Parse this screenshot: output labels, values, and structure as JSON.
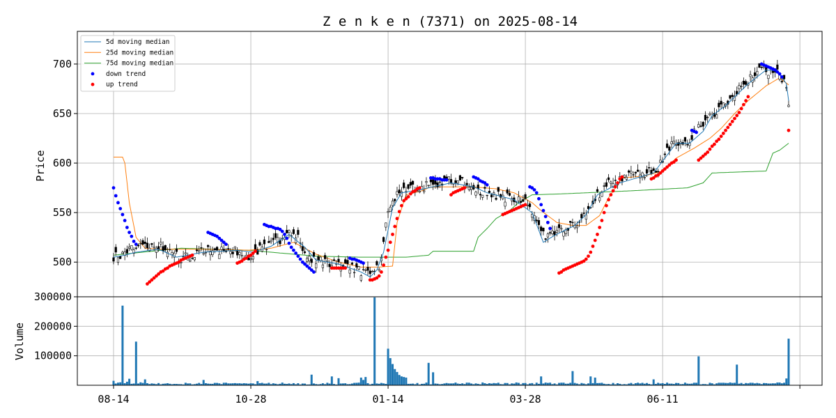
{
  "chart_data": {
    "type": "candlestick",
    "title": "Z e n k e n  (7371) on 2025-08-14",
    "price_panel": {
      "ylabel": "Price",
      "ylim": [
        465,
        733
      ],
      "yticks": [
        500,
        550,
        600,
        650,
        700
      ],
      "legend_position": "upper-left",
      "legend": [
        {
          "label": "5d moving median",
          "kind": "line",
          "color": "#1f77b4"
        },
        {
          "label": "25d moving median",
          "kind": "line",
          "color": "#ff7f0e"
        },
        {
          "label": "75d moving median",
          "kind": "line",
          "color": "#2ca02c"
        },
        {
          "label": "down trend",
          "kind": "dot",
          "color": "#0000ff"
        },
        {
          "label": "up trend",
          "kind": "dot",
          "color": "#ff0000"
        }
      ],
      "close_anchors": [
        [
          0,
          505
        ],
        [
          5,
          510
        ],
        [
          10,
          514
        ],
        [
          16,
          518
        ],
        [
          22,
          515
        ],
        [
          30,
          503
        ],
        [
          40,
          512
        ],
        [
          50,
          512
        ],
        [
          55,
          512
        ],
        [
          60,
          507
        ],
        [
          67,
          515
        ],
        [
          72,
          520
        ],
        [
          78,
          528
        ],
        [
          82,
          528
        ],
        [
          85,
          510
        ],
        [
          88,
          502
        ],
        [
          95,
          500
        ],
        [
          100,
          498
        ],
        [
          105,
          495
        ],
        [
          110,
          490
        ],
        [
          114,
          488
        ],
        [
          117,
          497
        ],
        [
          118,
          496
        ],
        [
          122,
          548
        ],
        [
          126,
          572
        ],
        [
          130,
          575
        ],
        [
          136,
          576
        ],
        [
          144,
          580
        ],
        [
          152,
          583
        ],
        [
          160,
          577
        ],
        [
          166,
          568
        ],
        [
          172,
          566
        ],
        [
          178,
          564
        ],
        [
          184,
          560
        ],
        [
          188,
          540
        ],
        [
          192,
          525
        ],
        [
          196,
          532
        ],
        [
          200,
          535
        ],
        [
          205,
          538
        ],
        [
          210,
          550
        ],
        [
          214,
          565
        ],
        [
          220,
          580
        ],
        [
          228,
          588
        ],
        [
          236,
          588
        ],
        [
          242,
          595
        ],
        [
          246,
          615
        ],
        [
          250,
          620
        ],
        [
          254,
          618
        ],
        [
          258,
          632
        ],
        [
          262,
          638
        ],
        [
          266,
          650
        ],
        [
          272,
          660
        ],
        [
          280,
          680
        ],
        [
          288,
          695
        ],
        [
          294,
          692
        ],
        [
          296,
          688
        ],
        [
          299,
          680
        ],
        [
          300,
          663
        ]
      ],
      "ma5_anchors": [
        [
          0,
          505
        ],
        [
          5,
          507
        ],
        [
          10,
          510
        ],
        [
          20,
          513
        ],
        [
          28,
          505
        ],
        [
          40,
          510
        ],
        [
          55,
          512
        ],
        [
          62,
          510
        ],
        [
          70,
          516
        ],
        [
          78,
          528
        ],
        [
          85,
          515
        ],
        [
          90,
          502
        ],
        [
          100,
          498
        ],
        [
          110,
          490
        ],
        [
          114,
          485
        ],
        [
          117,
          492
        ],
        [
          120,
          510
        ],
        [
          124,
          555
        ],
        [
          128,
          570
        ],
        [
          136,
          573
        ],
        [
          150,
          580
        ],
        [
          160,
          576
        ],
        [
          166,
          570
        ],
        [
          178,
          563
        ],
        [
          186,
          550
        ],
        [
          191,
          520
        ],
        [
          196,
          527
        ],
        [
          205,
          537
        ],
        [
          210,
          548
        ],
        [
          215,
          568
        ],
        [
          225,
          580
        ],
        [
          240,
          590
        ],
        [
          246,
          608
        ],
        [
          250,
          620
        ],
        [
          256,
          620
        ],
        [
          262,
          632
        ],
        [
          266,
          648
        ],
        [
          272,
          658
        ],
        [
          282,
          680
        ],
        [
          290,
          694
        ],
        [
          295,
          693
        ],
        [
          299,
          680
        ],
        [
          300,
          663
        ]
      ],
      "ma25_anchors": [
        [
          0,
          606
        ],
        [
          4,
          606
        ],
        [
          5,
          600
        ],
        [
          7,
          560
        ],
        [
          10,
          525
        ],
        [
          14,
          514
        ],
        [
          22,
          513
        ],
        [
          40,
          513
        ],
        [
          60,
          512
        ],
        [
          70,
          514
        ],
        [
          80,
          520
        ],
        [
          90,
          508
        ],
        [
          100,
          500
        ],
        [
          110,
          495
        ],
        [
          118,
          495
        ],
        [
          124,
          496
        ],
        [
          126,
          540
        ],
        [
          130,
          568
        ],
        [
          137,
          572
        ],
        [
          140,
          575
        ],
        [
          143,
          576
        ],
        [
          160,
          576
        ],
        [
          170,
          574
        ],
        [
          178,
          570
        ],
        [
          186,
          560
        ],
        [
          190,
          552
        ],
        [
          197,
          540
        ],
        [
          204,
          537
        ],
        [
          210,
          537
        ],
        [
          216,
          547
        ],
        [
          220,
          565
        ],
        [
          226,
          585
        ],
        [
          236,
          587
        ],
        [
          244,
          592
        ],
        [
          250,
          605
        ],
        [
          258,
          615
        ],
        [
          265,
          625
        ],
        [
          270,
          635
        ],
        [
          276,
          650
        ],
        [
          282,
          663
        ],
        [
          290,
          678
        ],
        [
          296,
          686
        ],
        [
          300,
          679
        ]
      ],
      "ma75_anchors": [
        [
          0,
          507
        ],
        [
          30,
          514
        ],
        [
          60,
          512
        ],
        [
          90,
          506
        ],
        [
          110,
          505
        ],
        [
          130,
          505
        ],
        [
          140,
          507
        ],
        [
          142,
          511
        ],
        [
          160,
          511
        ],
        [
          162,
          525
        ],
        [
          166,
          534
        ],
        [
          170,
          544
        ],
        [
          176,
          552
        ],
        [
          180,
          560
        ],
        [
          186,
          568
        ],
        [
          200,
          569
        ],
        [
          230,
          572
        ],
        [
          255,
          575
        ],
        [
          262,
          580
        ],
        [
          266,
          590
        ],
        [
          290,
          592
        ],
        [
          293,
          610
        ],
        [
          296,
          613
        ],
        [
          300,
          620
        ]
      ],
      "down_trend_segments": [
        {
          "start": 0,
          "values": [
            575,
            567,
            560,
            554,
            548,
            542,
            535,
            530,
            526,
            521,
            518
          ]
        },
        {
          "start": 42,
          "values": [
            530,
            529,
            528,
            527,
            526,
            524,
            522,
            520,
            518
          ]
        },
        {
          "start": 67,
          "values": [
            538,
            537,
            536,
            536,
            535,
            534,
            534,
            533,
            531,
            528,
            524,
            519,
            515,
            512,
            509,
            506,
            503,
            500,
            498,
            496,
            494,
            492,
            490
          ]
        },
        {
          "start": 105,
          "values": [
            504,
            503,
            503,
            502,
            501,
            500,
            499
          ]
        },
        {
          "start": 141,
          "values": [
            585,
            585,
            584,
            584,
            584,
            583,
            583,
            583
          ]
        },
        {
          "start": 160,
          "values": [
            586,
            585,
            584,
            582,
            581,
            580,
            578
          ]
        },
        {
          "start": 185,
          "values": [
            576,
            575,
            573,
            570,
            564,
            558,
            552,
            546,
            540,
            534
          ]
        },
        {
          "start": 257,
          "values": [
            633,
            632,
            631
          ]
        },
        {
          "start": 288,
          "values": [
            700,
            699,
            698,
            697,
            696,
            695,
            694,
            692,
            690,
            687
          ]
        }
      ],
      "up_trend_segments": [
        {
          "start": 15,
          "values": [
            478,
            480,
            482,
            484,
            486,
            488,
            490,
            491,
            493,
            494,
            496,
            497,
            498,
            499,
            500,
            502,
            503,
            504,
            505,
            506,
            507
          ]
        },
        {
          "start": 55,
          "values": [
            499,
            500,
            501,
            503,
            504,
            506,
            507,
            509,
            511
          ]
        },
        {
          "start": 97,
          "values": [
            494,
            494,
            494,
            494,
            494,
            494,
            494
          ]
        },
        {
          "start": 114,
          "values": [
            482,
            482,
            483,
            484,
            486,
            490,
            497,
            505,
            512,
            520,
            528,
            536,
            544,
            551,
            557,
            562,
            564,
            566,
            569,
            571,
            572,
            574,
            575
          ]
        },
        {
          "start": 150,
          "values": [
            568,
            570,
            571,
            572,
            573,
            574,
            575
          ]
        },
        {
          "start": 173,
          "values": [
            548,
            549,
            550,
            551,
            552,
            553,
            554,
            555,
            556,
            557,
            558
          ]
        },
        {
          "start": 198,
          "values": [
            489,
            490,
            492,
            493,
            494,
            495,
            496,
            497,
            498,
            499,
            500,
            501,
            503,
            506,
            510,
            516,
            522,
            528,
            535,
            542,
            550,
            557,
            563,
            568,
            572,
            576,
            580,
            584,
            586
          ]
        },
        {
          "start": 239,
          "values": [
            584,
            585,
            587,
            588,
            590,
            592,
            594,
            596,
            598,
            600,
            601,
            603
          ]
        },
        {
          "start": 260,
          "values": [
            603,
            605,
            607,
            609,
            611,
            614,
            617,
            619,
            622,
            624,
            627,
            630,
            633,
            636,
            639,
            642,
            645,
            648,
            651,
            655,
            659,
            663,
            667
          ]
        },
        {
          "start": 300,
          "values": [
            633
          ]
        }
      ]
    },
    "volume_panel": {
      "ylabel": "Volume",
      "ylim": [
        0,
        300000
      ],
      "yticks": [
        100000,
        200000,
        300000
      ],
      "baseline": 8000,
      "spikes": [
        [
          0,
          15000
        ],
        [
          1,
          6000
        ],
        [
          2,
          9000
        ],
        [
          3,
          10000
        ],
        [
          4,
          270000
        ],
        [
          5,
          7000
        ],
        [
          6,
          12000
        ],
        [
          7,
          22000
        ],
        [
          8,
          5000
        ],
        [
          9,
          6000
        ],
        [
          10,
          148000
        ],
        [
          11,
          6000
        ],
        [
          12,
          10000
        ],
        [
          13,
          8000
        ],
        [
          14,
          20000
        ],
        [
          15,
          7000
        ],
        [
          40,
          18000
        ],
        [
          58,
          7000
        ],
        [
          64,
          14000
        ],
        [
          88,
          36000
        ],
        [
          97,
          30000
        ],
        [
          100,
          24000
        ],
        [
          110,
          26000
        ],
        [
          111,
          18000
        ],
        [
          112,
          28000
        ],
        [
          116,
          298000
        ],
        [
          122,
          124000
        ],
        [
          123,
          92000
        ],
        [
          124,
          72000
        ],
        [
          125,
          55000
        ],
        [
          126,
          45000
        ],
        [
          127,
          35000
        ],
        [
          128,
          30000
        ],
        [
          129,
          28000
        ],
        [
          130,
          26000
        ],
        [
          140,
          76000
        ],
        [
          142,
          44000
        ],
        [
          190,
          30000
        ],
        [
          204,
          48000
        ],
        [
          212,
          30000
        ],
        [
          214,
          26000
        ],
        [
          240,
          20000
        ],
        [
          260,
          98000
        ],
        [
          277,
          70000
        ],
        [
          299,
          23000
        ],
        [
          300,
          158000
        ]
      ]
    },
    "x_axis": {
      "n_days": 301,
      "tick_labels": [
        {
          "label": "08-14",
          "index": 0
        },
        {
          "label": "10-28",
          "index": 61
        },
        {
          "label": "01-14",
          "index": 122
        },
        {
          "label": "03-28",
          "index": 183
        },
        {
          "label": "06-11",
          "index": 244
        },
        {
          "label": "",
          "index": 305
        }
      ]
    }
  }
}
